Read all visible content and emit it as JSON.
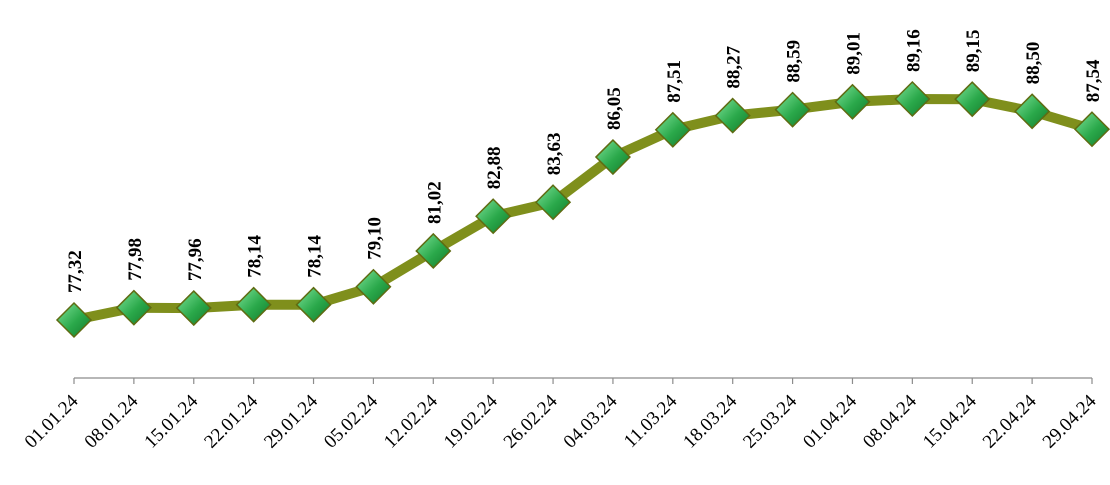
{
  "chart_data": {
    "type": "line",
    "title": "",
    "xlabel": "",
    "ylabel": "",
    "ylim": [
      70,
      92
    ],
    "grid": false,
    "legend": "none",
    "categories": [
      "01.01.24",
      "08.01.24",
      "15.01.24",
      "22.01.24",
      "29.01.24",
      "05.02.24",
      "12.02.24",
      "19.02.24",
      "26.02.24",
      "04.03.24",
      "11.03.24",
      "18.03.24",
      "25.03.24",
      "01.04.24",
      "08.04.24",
      "15.04.24",
      "22.04.24",
      "29.04.24"
    ],
    "labels": [
      "77,32",
      "77,98",
      "77,96",
      "78,14",
      "78,14",
      "79,10",
      "81,02",
      "82,88",
      "83,63",
      "86,05",
      "87,51",
      "88,27",
      "88,59",
      "89,01",
      "89,16",
      "89,15",
      "88,50",
      "87,54"
    ],
    "series": [
      {
        "values": [
          77.32,
          77.98,
          77.96,
          78.14,
          78.14,
          79.1,
          81.02,
          82.88,
          83.63,
          86.05,
          87.51,
          88.27,
          88.59,
          89.01,
          89.16,
          89.15,
          88.5,
          87.54
        ],
        "line_color": "#7f8f1c",
        "marker_color": "#2aa84a",
        "marker": "diamond"
      }
    ]
  }
}
